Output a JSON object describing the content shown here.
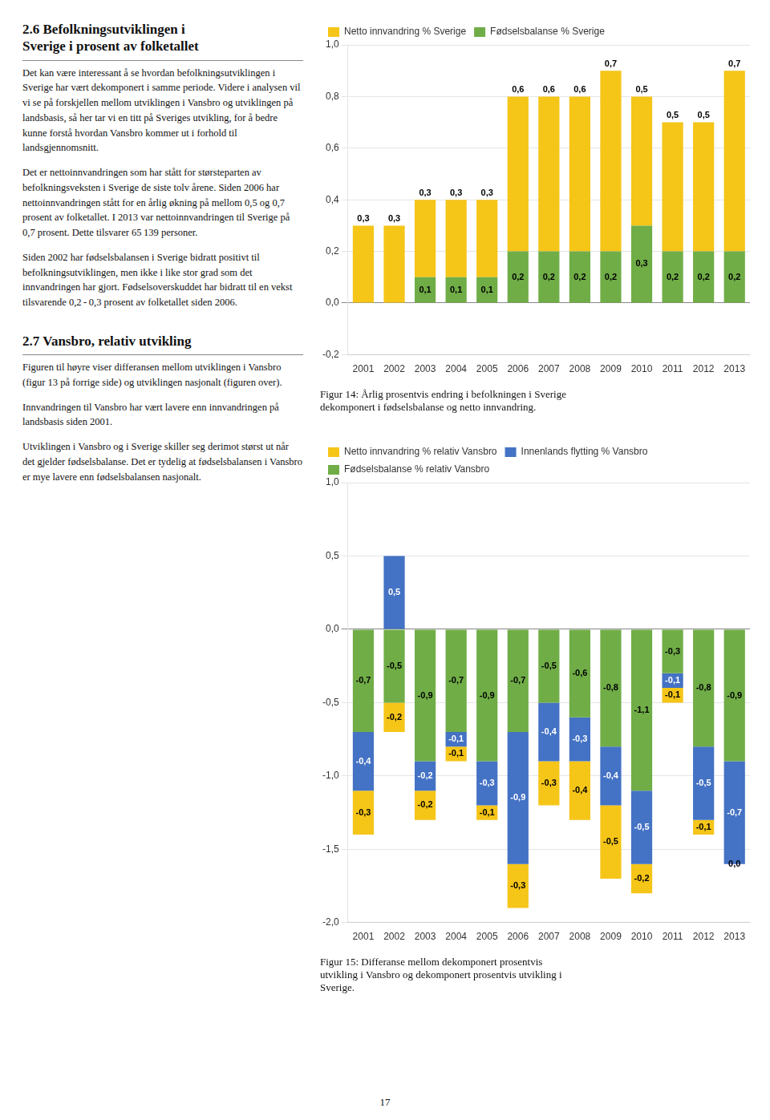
{
  "chart_data": [
    {
      "type": "bar",
      "stacked": true,
      "data_labels": true,
      "grid": true,
      "legend": "top",
      "subtitle": "Figur 14: Årlig prosentvis endring i befolkningen i Sverige\ndekomponert i fødselsbalanse og netto innvandring.",
      "categories": [
        2001,
        2002,
        2003,
        2004,
        2005,
        2006,
        2007,
        2008,
        2009,
        2010,
        2011,
        2012,
        2013
      ],
      "series": [
        {
          "name": "Netto innvandring % Sverige",
          "color": "#F5C518",
          "values": [
            0.3,
            0.3,
            0.3,
            0.3,
            0.3,
            0.6,
            0.6,
            0.6,
            0.7,
            0.5,
            0.5,
            0.5,
            0.7
          ],
          "value_labels": [
            "0,3",
            "0,3",
            "0,3",
            "0,3",
            "0,3",
            "0,6",
            "0,6",
            "0,6",
            "0,7",
            "0,5",
            "0,5",
            "0,5",
            "0,7"
          ]
        },
        {
          "name": "Fødselsbalanse % Sverige",
          "color": "#70AD47",
          "values": [
            0.0,
            0.0,
            0.1,
            0.1,
            0.1,
            0.2,
            0.2,
            0.2,
            0.2,
            0.3,
            0.2,
            0.2,
            0.2
          ],
          "value_labels": [
            null,
            null,
            "0,1",
            "0,1",
            "0,1",
            "0,2",
            "0,2",
            "0,2",
            "0,2",
            "0,3",
            "0,2",
            "0,2",
            "0,2"
          ]
        }
      ],
      "ylim": [
        -0.2,
        1.0
      ],
      "yticks": [
        {
          "value": -0.2,
          "label": "-0,2"
        },
        {
          "value": 0.0,
          "label": "0,0"
        },
        {
          "value": 0.2,
          "label": "0,2"
        },
        {
          "value": 0.4,
          "label": "0,4"
        },
        {
          "value": 0.6,
          "label": "0,6"
        },
        {
          "value": 0.8,
          "label": "0,8"
        },
        {
          "value": 1.0,
          "label": "1,0"
        }
      ]
    },
    {
      "type": "bar",
      "stacked": true,
      "data_labels": true,
      "grid": true,
      "legend": "top",
      "subtitle": "Figur 15: Differanse mellom dekomponert prosentvis\nutvikling i Vansbro og dekomponert prosentvis utvikling i\nSverige.",
      "categories": [
        2001,
        2002,
        2003,
        2004,
        2005,
        2006,
        2007,
        2008,
        2009,
        2010,
        2011,
        2012,
        2013
      ],
      "series": [
        {
          "name": "Netto innvandring % relativ Vansbro",
          "color": "#F5C518",
          "values": [
            -0.3,
            -0.2,
            -0.2,
            -0.1,
            -0.1,
            -0.3,
            -0.3,
            -0.4,
            -0.5,
            -0.2,
            -0.1,
            -0.1,
            0.0
          ],
          "value_labels": [
            "-0,3",
            "-0,2",
            "-0,2",
            "-0,1",
            "-0,1",
            "-0,3",
            "-0,3",
            "-0,4",
            "-0,5",
            "-0,2",
            "-0,1",
            "-0,1",
            "0,0"
          ]
        },
        {
          "name": "Innenlands flytting % Vansbro",
          "color": "#4472C4",
          "values": [
            -0.4,
            0.5,
            -0.2,
            -0.1,
            -0.3,
            -0.9,
            -0.4,
            -0.3,
            -0.4,
            -0.5,
            -0.1,
            -0.5,
            -0.7
          ],
          "value_labels": [
            "-0,4",
            "0,5",
            "-0,2",
            "-0,1",
            "-0,3",
            "-0,9",
            "-0,4",
            "-0,3",
            "-0,4",
            "-0,5",
            "-0,1",
            "-0,5",
            "-0,7"
          ]
        },
        {
          "name": "Fødselsbalanse % relativ Vansbro",
          "color": "#70AD47",
          "values": [
            -0.7,
            -0.5,
            -0.9,
            -0.7,
            -0.9,
            -0.7,
            -0.5,
            -0.6,
            -0.8,
            -1.1,
            -0.3,
            -0.8,
            -0.9
          ],
          "value_labels": [
            "-0,7",
            "-0,5",
            "-0,9",
            "-0,7",
            "-0,9",
            "-0,7",
            "-0,5",
            "-0,6",
            "-0,8",
            "-1,1",
            "-0,3",
            "-0,8",
            "-0,9"
          ]
        }
      ],
      "ylim": [
        -2.0,
        1.0
      ],
      "yticks": [
        {
          "value": -2.0,
          "label": "-2,0"
        },
        {
          "value": -1.5,
          "label": "-1,5"
        },
        {
          "value": -1.0,
          "label": "-1,0"
        },
        {
          "value": -0.5,
          "label": "-0,5"
        },
        {
          "value": 0.0,
          "label": "0,0"
        },
        {
          "value": 0.5,
          "label": "0,5"
        },
        {
          "value": 1.0,
          "label": "1,0"
        }
      ]
    }
  ],
  "page_text": [
    {
      "title": "2.6 Befolkningsutviklingen i\nSverige i prosent av folketallet",
      "paragraphs": [
        "Det kan være interessant å se hvordan befolkningsutviklingen i Sverige har vært dekomponert i samme periode. Videre i analysen vil vi se på forskjellen mellom utviklingen i Vansbro og utviklingen på landsbasis, så her tar vi en titt på Sveriges utvikling, for å bedre kunne forstå hvordan Vansbro kommer ut i forhold til landsgjennomsnitt.",
        "Det er nettoinnvandringen som har stått for størsteparten av befolkningsveksten i Sverige de siste tolv årene. Siden 2006 har nettoinnvandringen stått for en årlig økning på mellom 0,5 og 0,7 prosent av folketallet. I 2013 var nettoinnvandringen til Sverige på 0,7 prosent. Dette tilsvarer 65 139 personer.",
        "Siden 2002 har fødselsbalansen i Sverige bidratt positivt til befolkningsutviklingen, men ikke i like stor grad som det innvandringen har gjort. Fødselsoverskuddet har bidratt til en vekst tilsvarende 0,2 - 0,3 prosent av folketallet siden 2006."
      ]
    },
    {
      "title": "2.7 Vansbro, relativ utvikling",
      "paragraphs": [
        "Figuren til høyre viser differansen mellom utviklingen i Vansbro (figur 13 på forrige side) og utviklingen nasjonalt (figuren over).",
        "Innvandringen til Vansbro har vært lavere enn innvandringen på landsbasis siden 2001.",
        "Utviklingen i Vansbro og i Sverige skiller seg derimot størst ut når det gjelder fødselsbalanse. Det er tydelig at fødselsbalansen i Vansbro er mye lavere enn fødselsbalansen nasjonalt."
      ]
    }
  ],
  "page_number": "17"
}
